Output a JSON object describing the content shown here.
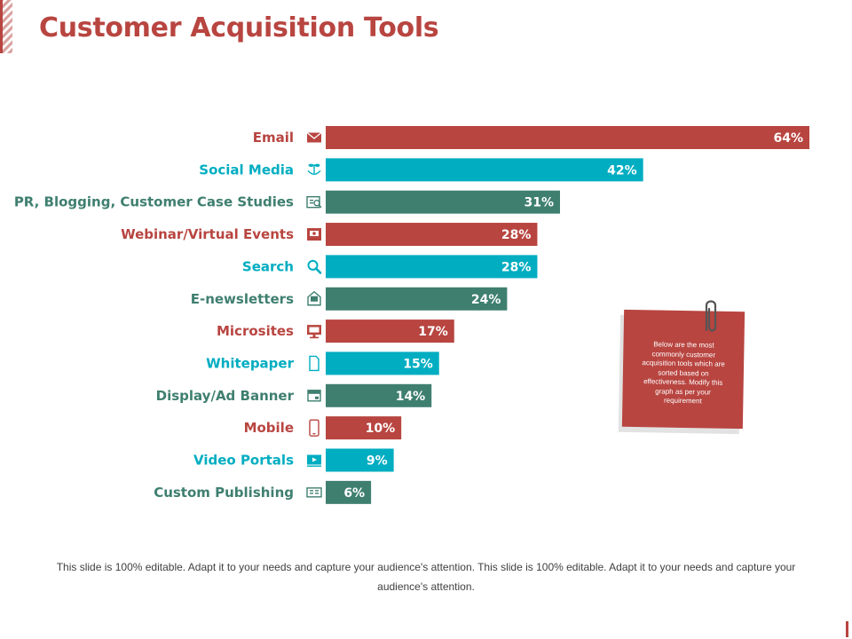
{
  "title": "Customer Acquisition Tools",
  "note": {
    "text": "Below are the most commonly customer acquisition tools which are sorted based on effectiveness. Modify this graph as per your requirement"
  },
  "footer": "This slide is 100% editable. Adapt it to your needs and capture your audience's attention. This slide is 100% editable. Adapt it to your needs and capture your audience's attention.",
  "colors": {
    "red": "#b84540",
    "teal": "#00adc1",
    "green": "#3f7f70"
  },
  "chart_data": {
    "type": "bar",
    "orientation": "horizontal",
    "title": "Customer Acquisition Tools",
    "xlabel": "",
    "ylabel": "",
    "xlim": [
      0,
      64
    ],
    "grid": false,
    "legend": "none",
    "value_suffix": "%",
    "categories": [
      "Email",
      "Social Media",
      "PR, Blogging, Customer Case Studies",
      "Webinar/Virtual Events",
      "Search",
      "E-newsletters",
      "Microsites",
      "Whitepaper",
      "Display/Ad Banner",
      "Mobile",
      "Video Portals",
      "Custom Publishing"
    ],
    "values": [
      64,
      42,
      31,
      28,
      28,
      24,
      17,
      15,
      14,
      10,
      9,
      6
    ],
    "value_labels": [
      "64%",
      "42%",
      "31%",
      "28%",
      "28%",
      "24%",
      "17%",
      "15%",
      "14%",
      "10%",
      "9%",
      "6%"
    ],
    "bar_colors": [
      "red",
      "teal",
      "green",
      "red",
      "teal",
      "green",
      "red",
      "teal",
      "green",
      "red",
      "teal",
      "green"
    ],
    "icons": [
      "envelope-icon",
      "plant-hand-icon",
      "case-study-icon",
      "webinar-icon",
      "search-icon",
      "newsletter-icon",
      "monitor-icon",
      "document-icon",
      "ad-banner-icon",
      "mobile-icon",
      "video-icon",
      "publishing-icon"
    ]
  }
}
